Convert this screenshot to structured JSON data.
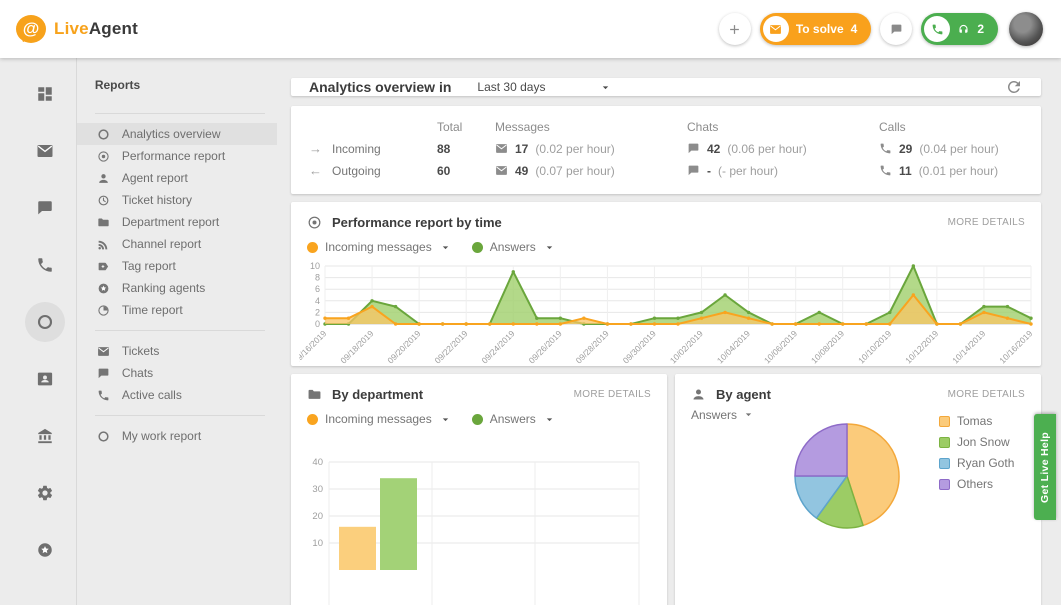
{
  "topbar": {
    "brand_live": "Live",
    "brand_agent": "Agent",
    "to_solve_label": "To solve",
    "to_solve_count": "4",
    "calls_count": "2",
    "orange": "#f9a11c",
    "green": "#4bae4f"
  },
  "rail": {
    "items": [
      {
        "icon": "dashboard",
        "name": "dashboard",
        "active": false
      },
      {
        "icon": "envelope",
        "name": "tickets",
        "active": false
      },
      {
        "icon": "chat",
        "name": "chats",
        "active": false
      },
      {
        "icon": "phone",
        "name": "calls",
        "active": false
      },
      {
        "icon": "ring",
        "name": "reports",
        "active": true
      },
      {
        "icon": "contact-card",
        "name": "contacts",
        "active": false
      },
      {
        "icon": "bank",
        "name": "company",
        "active": false
      },
      {
        "icon": "gear",
        "name": "settings",
        "active": false
      },
      {
        "icon": "star-circle",
        "name": "addons",
        "active": false
      }
    ]
  },
  "menu": {
    "title": "Reports",
    "groups": [
      [
        {
          "icon": "ring",
          "label": "Analytics overview",
          "active": true
        },
        {
          "icon": "target",
          "label": "Performance report",
          "active": false
        },
        {
          "icon": "person",
          "label": "Agent report",
          "active": false
        },
        {
          "icon": "history",
          "label": "Ticket history",
          "active": false
        },
        {
          "icon": "folder",
          "label": "Department report",
          "active": false
        },
        {
          "icon": "rss",
          "label": "Channel report",
          "active": false
        },
        {
          "icon": "tag",
          "label": "Tag report",
          "active": false
        },
        {
          "icon": "star-circle",
          "label": "Ranking agents",
          "active": false
        },
        {
          "icon": "timepie",
          "label": "Time report",
          "active": false
        }
      ],
      [
        {
          "icon": "envelope",
          "label": "Tickets",
          "active": false
        },
        {
          "icon": "chat",
          "label": "Chats",
          "active": false
        },
        {
          "icon": "phone",
          "label": "Active calls",
          "active": false
        }
      ],
      [
        {
          "icon": "ring",
          "label": "My work report",
          "active": false
        }
      ]
    ]
  },
  "header": {
    "title": "Analytics overview in",
    "range": "Last 30 days"
  },
  "stats": {
    "columns": [
      "Total",
      "Messages",
      "Chats",
      "Calls"
    ],
    "rows": [
      {
        "arrow": "→",
        "label": "Incoming",
        "total": "88",
        "messages": {
          "value": "17",
          "rate": "(0.02 per hour)"
        },
        "chats": {
          "value": "42",
          "rate": "(0.06 per hour)"
        },
        "calls": {
          "value": "29",
          "rate": "(0.04 per hour)"
        }
      },
      {
        "arrow": "←",
        "label": "Outgoing",
        "total": "60",
        "messages": {
          "value": "49",
          "rate": "(0.07 per hour)"
        },
        "chats": {
          "value": "-",
          "rate": "(- per hour)"
        },
        "calls": {
          "value": "11",
          "rate": "(0.01 per hour)"
        }
      }
    ]
  },
  "performance": {
    "title": "Performance report by time",
    "more_label": "MORE DETAILS",
    "legend": [
      {
        "label": "Incoming messages",
        "color": "#f9a41f"
      },
      {
        "label": "Answers",
        "color": "#6aa63c"
      }
    ],
    "chart_data": {
      "type": "area",
      "x": [
        "09/16/2019",
        "09/17/2019",
        "09/18/2019",
        "09/19/2019",
        "09/20/2019",
        "09/21/2019",
        "09/22/2019",
        "09/23/2019",
        "09/24/2019",
        "09/25/2019",
        "09/26/2019",
        "09/27/2019",
        "09/28/2019",
        "09/29/2019",
        "09/30/2019",
        "10/01/2019",
        "10/02/2019",
        "10/03/2019",
        "10/04/2019",
        "10/05/2019",
        "10/06/2019",
        "10/07/2019",
        "10/08/2019",
        "10/09/2019",
        "10/10/2019",
        "10/11/2019",
        "10/12/2019",
        "10/13/2019",
        "10/14/2019",
        "10/15/2019",
        "10/16/2019"
      ],
      "series": [
        {
          "name": "Answers",
          "line": "#6aa63c",
          "fill": "rgba(160,208,108,0.8)",
          "values": [
            0,
            0,
            4,
            3,
            0,
            0,
            0,
            0,
            9,
            1,
            1,
            0,
            0,
            0,
            1,
            1,
            2,
            5,
            2,
            0,
            0,
            2,
            0,
            0,
            2,
            10,
            0,
            0,
            3,
            3,
            1
          ]
        },
        {
          "name": "Incoming messages",
          "line": "#f9a41f",
          "fill": "rgba(250,196,100,0.75)",
          "values": [
            1,
            1,
            3,
            0,
            0,
            0,
            0,
            0,
            0,
            0,
            0,
            1,
            0,
            0,
            0,
            0,
            1,
            2,
            1,
            0,
            0,
            0,
            0,
            0,
            0,
            5,
            0,
            0,
            2,
            1,
            0
          ]
        }
      ],
      "ylim": [
        0,
        10
      ],
      "yticks": [
        0,
        2,
        4,
        6,
        8,
        10
      ],
      "xtick_every": 2,
      "grid": true
    }
  },
  "department": {
    "title": "By department",
    "more_label": "MORE DETAILS",
    "legend": [
      {
        "label": "Incoming messages",
        "color": "#f9a41f"
      },
      {
        "label": "Answers",
        "color": "#6aa63c"
      }
    ],
    "chart_data": {
      "type": "bar",
      "categories": [
        ""
      ],
      "series": [
        {
          "name": "Incoming messages",
          "color": "#fbcf7d",
          "values": [
            16
          ]
        },
        {
          "name": "Answers",
          "color": "#a3d277",
          "values": [
            34
          ]
        }
      ],
      "ylim": [
        0,
        40
      ],
      "yticks": [
        10,
        20,
        30,
        40
      ],
      "grid": true
    }
  },
  "agent": {
    "title": "By agent",
    "more_label": "MORE DETAILS",
    "filter_label": "Answers",
    "chart_data": {
      "type": "pie",
      "labels": [
        "Tomas",
        "Jon Snow",
        "Ryan Goth",
        "Others"
      ],
      "values": [
        45,
        15,
        15,
        25
      ],
      "colors": [
        "#fbcb7b",
        "#9ccc65",
        "#92c5e0",
        "#b49be0"
      ],
      "borders": [
        "#f3a83b",
        "#7cb342",
        "#5da4cc",
        "#8e6bc8"
      ],
      "legend_position": "right"
    }
  },
  "live_help": {
    "label": "Get Live Help",
    "color": "#4caf50"
  }
}
